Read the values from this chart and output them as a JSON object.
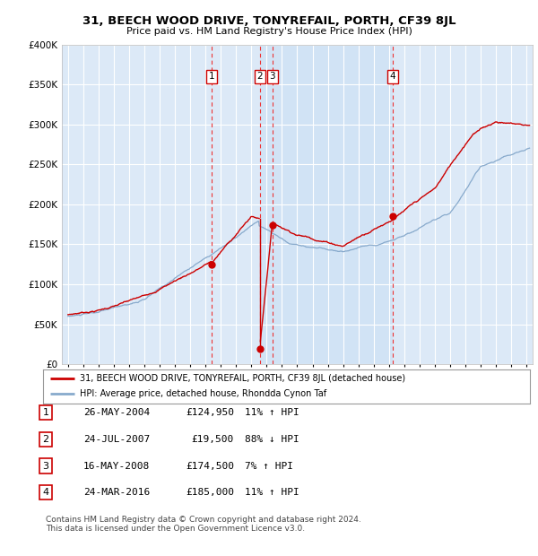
{
  "title": "31, BEECH WOOD DRIVE, TONYREFAIL, PORTH, CF39 8JL",
  "subtitle": "Price paid vs. HM Land Registry's House Price Index (HPI)",
  "legend_line1": "31, BEECH WOOD DRIVE, TONYREFAIL, PORTH, CF39 8JL (detached house)",
  "legend_line2": "HPI: Average price, detached house, Rhondda Cynon Taf",
  "footer1": "Contains HM Land Registry data © Crown copyright and database right 2024.",
  "footer2": "This data is licensed under the Open Government Licence v3.0.",
  "transactions": [
    {
      "label": "1",
      "date": "26-MAY-2004",
      "price": 124950,
      "pct": "11%",
      "dir": "↑",
      "x": 2004.4
    },
    {
      "label": "2",
      "date": "24-JUL-2007",
      "price": 19500,
      "pct": "88%",
      "dir": "↓",
      "x": 2007.55
    },
    {
      "label": "3",
      "date": "16-MAY-2008",
      "price": 174500,
      "pct": "7%",
      "dir": "↑",
      "x": 2008.37
    },
    {
      "label": "4",
      "date": "24-MAR-2016",
      "price": 185000,
      "pct": "11%",
      "dir": "↑",
      "x": 2016.23
    }
  ],
  "dot_prices": [
    124950,
    19500,
    174500,
    185000
  ],
  "ylim": [
    0,
    400000
  ],
  "yticks": [
    0,
    50000,
    100000,
    150000,
    200000,
    250000,
    300000,
    350000,
    400000
  ],
  "xlim": [
    1994.6,
    2025.4
  ],
  "plot_bg": "#dce9f7",
  "plot_bg_highlight": "#c8dff5",
  "red_color": "#cc0000",
  "blue_color": "#88aacc",
  "grid_color": "#ffffff",
  "vline_color": "#ee3333"
}
